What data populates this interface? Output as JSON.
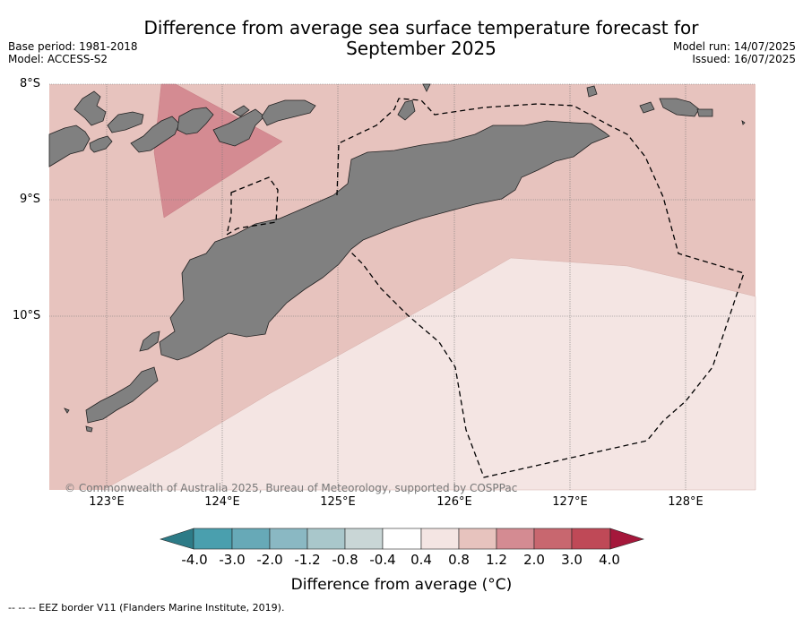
{
  "title": "Difference from average sea surface temperature forecast for September 2025",
  "meta": {
    "base_period": "Base period: 1981-2018",
    "model": "Model: ACCESS-S2",
    "model_run": "Model run: 14/07/2025",
    "issued": "Issued: 16/07/2025"
  },
  "lat_labels": [
    "8°S",
    "9°S",
    "10°S"
  ],
  "lon_labels": [
    "123°E",
    "124°E",
    "125°E",
    "126°E",
    "127°E",
    "128°E"
  ],
  "copyright": "© Commonwealth of Australia 2025, Bureau of Meteorology, supported by COSPPac",
  "colorbar": {
    "ticks": [
      "-4.0",
      "-3.0",
      "-2.0",
      "-1.2",
      "-0.8",
      "-0.4",
      "0.4",
      "0.8",
      "1.2",
      "2.0",
      "3.0",
      "4.0"
    ],
    "colors": [
      "#2d7b87",
      "#4a9fae",
      "#67a9b7",
      "#8ab8c3",
      "#a9c7cb",
      "#c9d6d6",
      "#ffffff",
      "#f4e5e3",
      "#e7c3be",
      "#d48b92",
      "#c8676f",
      "#bf4957",
      "#a5183b"
    ],
    "label": "Difference from average (°C)"
  },
  "footer": "--  --  -- EEZ border V11 (Flanders Marine Institute, 2019).",
  "map_colors": {
    "land": "#808080",
    "anomaly_0.8_1.2": "#e7c3be",
    "anomaly_0.4_0.8": "#f4e5e3",
    "anomaly_1.2_2.0": "#d48b92"
  }
}
